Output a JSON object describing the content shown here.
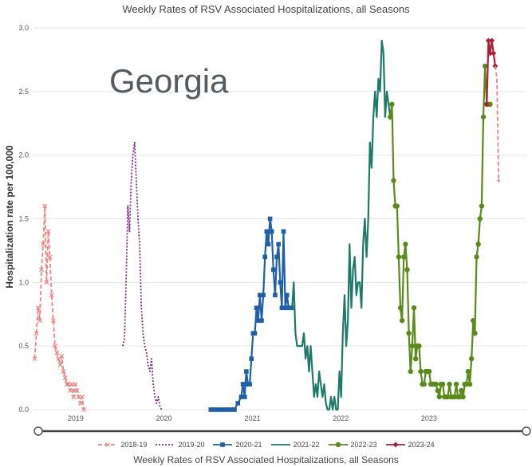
{
  "chart_title": "Weekly Rates of RSV Associated Hospitalizations, all Seasons",
  "overlay_label": "Georgia",
  "footer_title": "Weekly Rates of RSV Associated Hospitalizations, all Seasons",
  "chart_data": {
    "type": "line",
    "title": "Weekly Rates of RSV Associated Hospitalizations, all Seasons",
    "xlabel": "",
    "ylabel": "Hospitalization rate per 100,000",
    "ylim": [
      0,
      3.0
    ],
    "yticks": [
      "0.0",
      "0.5",
      "1.0",
      "1.5",
      "2.0",
      "2.5",
      "3.0"
    ],
    "xlim": [
      "2018-10-01",
      "2024-04-30"
    ],
    "xticks": [
      {
        "label": "2019",
        "date": "2019-01-01"
      },
      {
        "label": "2020",
        "date": "2020-01-01"
      },
      {
        "label": "2021",
        "date": "2021-01-01"
      },
      {
        "label": "2022",
        "date": "2022-01-01"
      },
      {
        "label": "2023",
        "date": "2023-01-01"
      }
    ],
    "grid": true,
    "legend_position": "bottom",
    "series": [
      {
        "name": "2018-19",
        "color": "#f08080",
        "style": "dashed",
        "marker": "x",
        "x": [
          "2018-10-06",
          "2018-10-13",
          "2018-10-20",
          "2018-10-27",
          "2018-11-03",
          "2018-11-10",
          "2018-11-17",
          "2018-11-24",
          "2018-12-01",
          "2018-12-08",
          "2018-12-15",
          "2018-12-22",
          "2018-12-29",
          "2019-01-05",
          "2019-01-12",
          "2019-01-19",
          "2019-01-26",
          "2019-02-02",
          "2019-02-09",
          "2019-02-16",
          "2019-02-23",
          "2019-03-02",
          "2019-03-09",
          "2019-03-16",
          "2019-03-23",
          "2019-03-30",
          "2019-04-06",
          "2019-04-13",
          "2019-04-20",
          "2019-04-27"
        ],
        "y": [
          0.4,
          0.6,
          0.8,
          0.7,
          1.1,
          1.3,
          1.6,
          1.0,
          1.4,
          1.2,
          0.9,
          0.7,
          0.5,
          0.45,
          0.4,
          0.35,
          0.42,
          0.3,
          0.25,
          0.2,
          0.2,
          0.15,
          0.2,
          0.1,
          0.2,
          0.15,
          0.1,
          0.05,
          0.1,
          0.0
        ]
      },
      {
        "name": "2019-20",
        "color": "#7b2c83",
        "style": "dotted",
        "marker": "none",
        "x": [
          "2019-10-05",
          "2019-10-12",
          "2019-10-19",
          "2019-10-26",
          "2019-11-02",
          "2019-11-09",
          "2019-11-16",
          "2019-11-23",
          "2019-11-30",
          "2019-12-07",
          "2019-12-14",
          "2019-12-21",
          "2019-12-28",
          "2020-01-04",
          "2020-01-11",
          "2020-01-18",
          "2020-01-25",
          "2020-02-01",
          "2020-02-08",
          "2020-02-15",
          "2020-02-22",
          "2020-02-29",
          "2020-03-07",
          "2020-03-14"
        ],
        "y": [
          0.5,
          0.55,
          1.0,
          1.6,
          1.4,
          1.8,
          2.0,
          2.1,
          1.8,
          1.5,
          1.3,
          0.8,
          0.6,
          0.5,
          0.45,
          0.35,
          0.3,
          0.4,
          0.2,
          0.1,
          0.05,
          0.1,
          0.02,
          0.0
        ]
      },
      {
        "name": "2020-21",
        "color": "#1f5fa8",
        "style": "solid",
        "marker": "square",
        "x": [
          "2020-10-03",
          "2020-10-17",
          "2020-10-31",
          "2020-11-14",
          "2020-11-28",
          "2020-12-12",
          "2020-12-26",
          "2021-01-09",
          "2021-01-23",
          "2021-02-06",
          "2021-02-13",
          "2021-02-20",
          "2021-02-27",
          "2021-03-06",
          "2021-03-13",
          "2021-03-20",
          "2021-03-27",
          "2021-04-03",
          "2021-04-10",
          "2021-04-17",
          "2021-04-24",
          "2021-05-01",
          "2021-05-08",
          "2021-05-15",
          "2021-05-22",
          "2021-05-29",
          "2021-06-05",
          "2021-06-12",
          "2021-06-19",
          "2021-06-26",
          "2021-07-03",
          "2021-07-10",
          "2021-07-17",
          "2021-07-24",
          "2021-07-31",
          "2021-08-07",
          "2021-08-14",
          "2021-08-21",
          "2021-08-28",
          "2021-09-04"
        ],
        "y": [
          0.0,
          0.0,
          0.0,
          0.0,
          0.0,
          0.0,
          0.0,
          0.0,
          0.05,
          0.1,
          0.2,
          0.1,
          0.3,
          0.2,
          0.2,
          0.4,
          0.6,
          0.6,
          0.8,
          0.7,
          0.9,
          0.7,
          0.9,
          1.2,
          1.4,
          1.3,
          1.5,
          1.4,
          1.1,
          0.9,
          1.2,
          1.3,
          1.0,
          0.8,
          1.4,
          0.8,
          0.9,
          0.8,
          0.8,
          0.8
        ]
      },
      {
        "name": "2021-22",
        "color": "#1e7a68",
        "style": "solid",
        "marker": "none",
        "x": [
          "2021-09-04",
          "2021-09-11",
          "2021-09-18",
          "2021-09-25",
          "2021-10-02",
          "2021-10-09",
          "2021-10-16",
          "2021-10-23",
          "2021-10-30",
          "2021-11-06",
          "2021-11-13",
          "2021-11-20",
          "2021-11-27",
          "2021-12-04",
          "2021-12-11",
          "2021-12-18",
          "2021-12-25",
          "2022-01-01",
          "2022-01-08",
          "2022-01-15",
          "2022-01-22",
          "2022-01-29",
          "2022-02-05",
          "2022-02-12",
          "2022-02-19",
          "2022-02-26",
          "2022-03-05",
          "2022-03-12",
          "2022-03-19",
          "2022-03-26",
          "2022-04-02",
          "2022-04-09",
          "2022-04-16",
          "2022-04-23",
          "2022-04-30",
          "2022-05-07",
          "2022-05-14",
          "2022-05-21",
          "2022-05-28",
          "2022-06-04",
          "2022-06-11",
          "2022-06-18",
          "2022-06-25",
          "2022-07-02",
          "2022-07-09",
          "2022-07-16",
          "2022-07-23",
          "2022-07-30",
          "2022-08-06",
          "2022-08-13",
          "2022-08-20",
          "2022-08-27",
          "2022-09-03",
          "2022-09-10",
          "2022-09-17",
          "2022-09-24",
          "2022-10-01",
          "2022-10-08",
          "2022-10-15"
        ],
        "y": [
          0.8,
          1.0,
          0.6,
          0.5,
          0.5,
          0.5,
          0.5,
          0.6,
          0.4,
          0.5,
          0.3,
          0.5,
          0.3,
          0.1,
          0.2,
          0.1,
          0.3,
          0.2,
          0.1,
          0.2,
          0.05,
          0.0,
          0.0,
          0.1,
          0.0,
          0.1,
          0.0,
          0.0,
          0.3,
          0.1,
          0.6,
          0.9,
          0.5,
          0.7,
          1.3,
          0.8,
          1.1,
          1.2,
          0.9,
          1.0,
          1.0,
          0.8,
          1.3,
          1.5,
          1.2,
          1.5,
          2.1,
          1.9,
          2.3,
          2.5,
          2.3,
          2.6,
          2.5,
          2.9,
          2.8,
          2.3,
          2.5,
          2.4,
          2.3
        ]
      },
      {
        "name": "2022-23",
        "color": "#5a8a1a",
        "style": "solid",
        "marker": "circle",
        "x": [
          "2022-10-15",
          "2022-10-22",
          "2022-10-29",
          "2022-11-05",
          "2022-11-12",
          "2022-11-19",
          "2022-11-26",
          "2022-12-03",
          "2022-12-10",
          "2022-12-17",
          "2022-12-24",
          "2022-12-31",
          "2023-01-07",
          "2023-01-14",
          "2023-01-21",
          "2023-01-28",
          "2023-02-04",
          "2023-02-11",
          "2023-02-18",
          "2023-02-25",
          "2023-03-04",
          "2023-03-11",
          "2023-03-18",
          "2023-03-25",
          "2023-04-01",
          "2023-04-08",
          "2023-04-15",
          "2023-04-22",
          "2023-04-29",
          "2023-05-06",
          "2023-05-13",
          "2023-05-20",
          "2023-05-27",
          "2023-06-03",
          "2023-06-10",
          "2023-06-17",
          "2023-06-24",
          "2023-07-01",
          "2023-07-08",
          "2023-07-15",
          "2023-07-22",
          "2023-07-29",
          "2023-08-05",
          "2023-08-12",
          "2023-08-19",
          "2023-08-26",
          "2023-09-02",
          "2023-09-09",
          "2023-09-16",
          "2023-09-23",
          "2023-09-30",
          "2023-10-07",
          "2023-10-14",
          "2023-10-21",
          "2023-10-28",
          "2023-11-04",
          "2023-11-11",
          "2023-11-18",
          "2023-11-25",
          "2023-12-02"
        ],
        "y": [
          2.3,
          2.4,
          1.8,
          1.6,
          1.6,
          1.2,
          0.8,
          0.7,
          1.2,
          1.3,
          1.1,
          0.6,
          0.3,
          0.5,
          0.8,
          0.4,
          0.5,
          0.5,
          0.3,
          0.2,
          0.2,
          0.3,
          0.3,
          0.3,
          0.2,
          0.2,
          0.2,
          0.2,
          0.15,
          0.1,
          0.2,
          0.2,
          0.1,
          0.1,
          0.1,
          0.2,
          0.1,
          0.1,
          0.1,
          0.2,
          0.1,
          0.1,
          0.15,
          0.1,
          0.2,
          0.2,
          0.3,
          0.2,
          0.4,
          0.7,
          0.6,
          1.2,
          1.3,
          1.5,
          1.6,
          2.3,
          2.7,
          2.4,
          2.4,
          2.4
        ]
      },
      {
        "name": "2023-24",
        "color": "#b01e3c",
        "style": "solid",
        "marker": "diamond",
        "x": [
          "2023-11-18",
          "2023-11-25",
          "2023-12-02",
          "2023-12-09",
          "2023-12-16",
          "2023-12-23"
        ],
        "y": [
          2.4,
          2.9,
          2.8,
          2.9,
          2.8,
          2.7
        ]
      },
      {
        "name": "2023-24 (preliminary)",
        "color": "#f08080",
        "style": "dashed",
        "marker": "none",
        "legend": false,
        "x": [
          "2023-12-23",
          "2023-12-30",
          "2024-01-06"
        ],
        "y": [
          2.7,
          2.6,
          1.8
        ]
      }
    ]
  }
}
